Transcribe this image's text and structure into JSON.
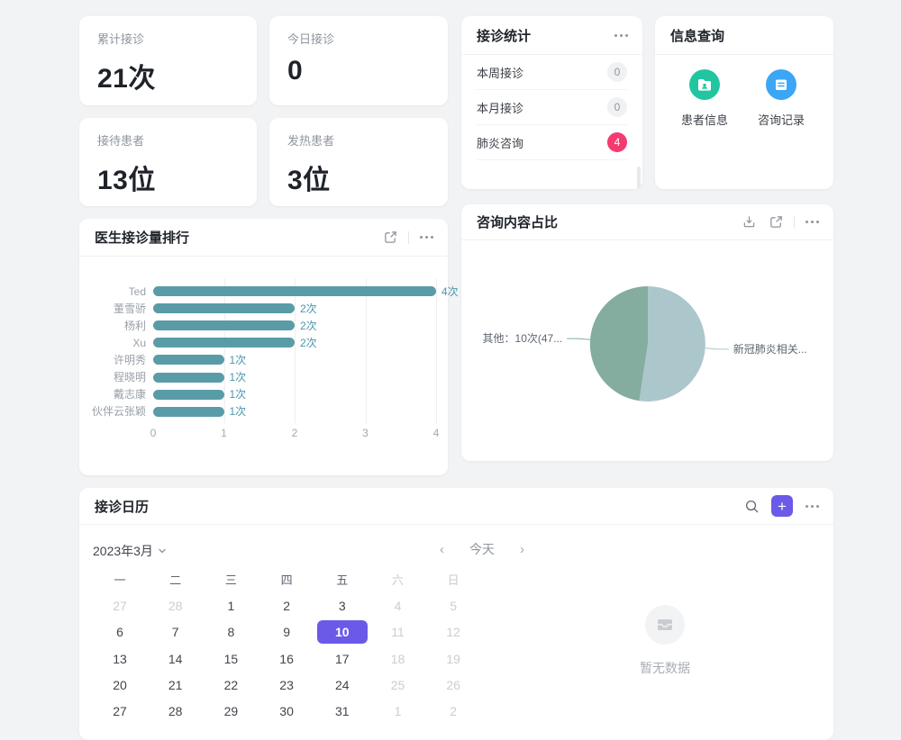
{
  "colors": {
    "accent": "#6b5ae8",
    "bar": "#599ca8",
    "bar_value_label": "#4b96ad",
    "badge_red": "#f33b6f",
    "icon_green": "#21c6a0",
    "icon_blue": "#3ca6f6"
  },
  "cards": {
    "stats": [
      {
        "label": "累计接诊",
        "value": "21次"
      },
      {
        "label": "今日接诊",
        "value": "0"
      },
      {
        "label": "接待患者",
        "value": "13位"
      },
      {
        "label": "发热患者",
        "value": "3位"
      }
    ],
    "reception": {
      "title": "接诊统计",
      "rows": [
        {
          "label": "本周接诊",
          "count": "0",
          "badge": "gray"
        },
        {
          "label": "本月接诊",
          "count": "0",
          "badge": "gray"
        },
        {
          "label": "肺炎咨询",
          "count": "4",
          "badge": "red"
        }
      ]
    },
    "info": {
      "title": "信息查询",
      "items": [
        {
          "label": "患者信息",
          "icon": "patient-info-icon",
          "color": "#21c6a0"
        },
        {
          "label": "咨询记录",
          "icon": "consult-record-icon",
          "color": "#3ca6f6"
        }
      ]
    },
    "calendar": {
      "title": "接诊日历",
      "month_label": "2023年3月",
      "prev_label": "‹",
      "today_label": "今天",
      "next_label": "›",
      "add_label": "+",
      "weekdays": [
        "一",
        "二",
        "三",
        "四",
        "五",
        "六",
        "日"
      ],
      "weeks": [
        [
          {
            "d": "27",
            "mut": true
          },
          {
            "d": "28",
            "mut": true
          },
          {
            "d": "1"
          },
          {
            "d": "2"
          },
          {
            "d": "3"
          },
          {
            "d": "4",
            "mut": true
          },
          {
            "d": "5",
            "mut": true
          }
        ],
        [
          {
            "d": "6"
          },
          {
            "d": "7"
          },
          {
            "d": "8"
          },
          {
            "d": "9"
          },
          {
            "d": "10",
            "sel": true
          },
          {
            "d": "11",
            "mut": true
          },
          {
            "d": "12",
            "mut": true
          }
        ],
        [
          {
            "d": "13"
          },
          {
            "d": "14"
          },
          {
            "d": "15"
          },
          {
            "d": "16"
          },
          {
            "d": "17"
          },
          {
            "d": "18",
            "mut": true
          },
          {
            "d": "19",
            "mut": true
          }
        ],
        [
          {
            "d": "20"
          },
          {
            "d": "21"
          },
          {
            "d": "22"
          },
          {
            "d": "23"
          },
          {
            "d": "24"
          },
          {
            "d": "25",
            "mut": true
          },
          {
            "d": "26",
            "mut": true
          }
        ],
        [
          {
            "d": "27"
          },
          {
            "d": "28"
          },
          {
            "d": "29"
          },
          {
            "d": "30"
          },
          {
            "d": "31"
          },
          {
            "d": "1",
            "mut": true
          },
          {
            "d": "2",
            "mut": true
          }
        ]
      ],
      "empty_text": "暂无数据"
    }
  },
  "chart_data": [
    {
      "type": "bar",
      "title": "医生接诊量排行",
      "orientation": "horizontal",
      "categories": [
        "Ted",
        "董雪骄",
        "杨利",
        "Xu",
        "许明秀",
        "程晓明",
        "戴志康",
        "伙伴云张颖"
      ],
      "values": [
        4,
        2,
        2,
        2,
        1,
        1,
        1,
        1
      ],
      "value_labels": [
        "4次",
        "2次",
        "2次",
        "2次",
        "1次",
        "1次",
        "1次",
        "1次"
      ],
      "xlabel": "",
      "ylabel": "",
      "xlim": [
        0,
        4
      ],
      "x_ticks": [
        0,
        1,
        2,
        3,
        4
      ],
      "grid": true,
      "bar_color": "#599ca8",
      "value_label_color": "#4b96ad"
    },
    {
      "type": "pie",
      "title": "咨询内容占比",
      "total": 21,
      "slices": [
        {
          "name": "新冠肺炎相关",
          "display_label": "新冠肺炎相关...",
          "value": 11,
          "pct": 52.4,
          "color": "#abc7cc"
        },
        {
          "name": "其他",
          "display_label": "其他：10次(47...",
          "value": 10,
          "pct": 47.6,
          "color": "#84ad9f"
        }
      ],
      "legend_position": "callout-lines"
    }
  ]
}
